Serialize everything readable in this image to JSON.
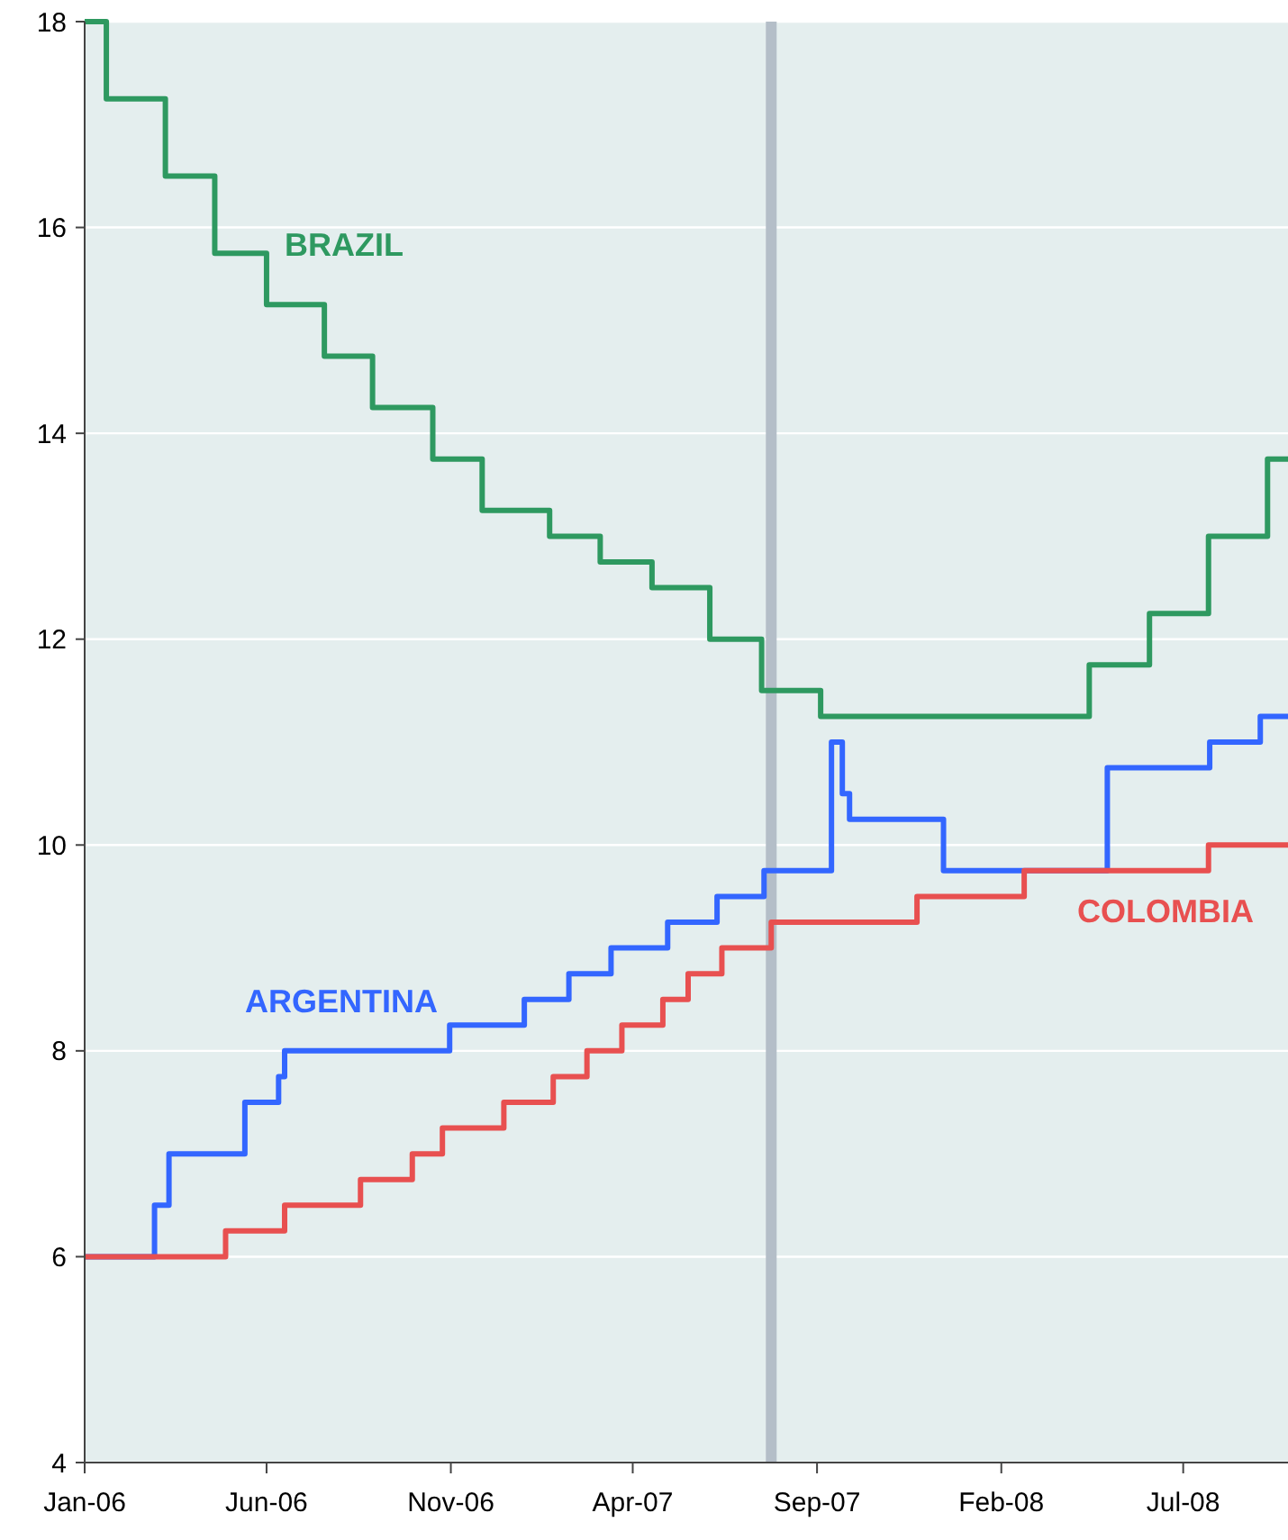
{
  "chart_data": {
    "type": "step",
    "xlim": [
      "2006-01-01",
      "2008-09-26"
    ],
    "ylim": [
      4,
      18
    ],
    "xticks": [
      {
        "value": "2006-01-01",
        "label": "Jan-06"
      },
      {
        "value": "2006-06-01",
        "label": "Jun-06"
      },
      {
        "value": "2006-11-01",
        "label": "Nov-06"
      },
      {
        "value": "2007-04-01",
        "label": "Apr-07"
      },
      {
        "value": "2007-09-01",
        "label": "Sep-07"
      },
      {
        "value": "2008-02-01",
        "label": "Feb-08"
      },
      {
        "value": "2008-07-01",
        "label": "Jul-08"
      }
    ],
    "yticks": [
      4,
      6,
      8,
      10,
      12,
      14,
      16,
      18
    ],
    "grid": "y",
    "ref_lines": [
      {
        "axis": "x",
        "value": "2007-07-25",
        "label": null,
        "color": "#b4bec8"
      }
    ],
    "series": [
      {
        "name": "BRAZIL",
        "color": "#2e9960",
        "x": [
          "2006-01-01",
          "2006-01-19",
          "2006-03-09",
          "2006-04-19",
          "2006-06-01",
          "2006-07-19",
          "2006-08-28",
          "2006-10-17",
          "2006-11-27",
          "2007-01-22",
          "2007-03-05",
          "2007-04-17",
          "2007-06-04",
          "2007-07-17",
          "2007-09-04",
          "2008-04-14",
          "2008-06-03",
          "2008-07-22",
          "2008-09-09",
          "2008-09-26"
        ],
        "values": [
          18,
          17.25,
          16.5,
          15.75,
          15.25,
          14.75,
          14.25,
          13.75,
          13.25,
          13,
          12.75,
          12.5,
          12,
          11.5,
          11.25,
          11.75,
          12.25,
          13,
          13.75,
          13.75
        ]
      },
      {
        "name": "ARGENTINA",
        "color": "#3366ff",
        "x": [
          "2006-01-01",
          "2006-02-28",
          "2006-03-12",
          "2006-05-14",
          "2006-06-11",
          "2006-06-16",
          "2006-10-31",
          "2007-01-01",
          "2007-02-07",
          "2007-03-14",
          "2007-04-30",
          "2007-06-10",
          "2007-07-19",
          "2007-09-13",
          "2007-09-22",
          "2007-09-28",
          "2007-12-15",
          "2008-04-29",
          "2008-07-23",
          "2008-09-03",
          "2008-09-26"
        ],
        "values": [
          6,
          6.5,
          7,
          7.5,
          7.75,
          8,
          8.25,
          8.5,
          8.75,
          9,
          9.25,
          9.5,
          9.75,
          11,
          10.5,
          10.25,
          9.75,
          10.75,
          11,
          11.25,
          11.25
        ]
      },
      {
        "name": "COLOMBIA",
        "color": "#e85050",
        "x": [
          "2006-01-01",
          "2006-04-28",
          "2006-06-16",
          "2006-08-18",
          "2006-09-30",
          "2006-10-25",
          "2006-12-15",
          "2007-01-25",
          "2007-02-22",
          "2007-03-23",
          "2007-04-26",
          "2007-05-17",
          "2007-06-14",
          "2007-07-25",
          "2007-11-23",
          "2008-02-20",
          "2008-07-22",
          "2008-09-26"
        ],
        "values": [
          6,
          6.25,
          6.5,
          6.75,
          7,
          7.25,
          7.5,
          7.75,
          8,
          8.25,
          8.5,
          8.75,
          9,
          9.25,
          9.5,
          9.75,
          10,
          10
        ]
      }
    ]
  }
}
